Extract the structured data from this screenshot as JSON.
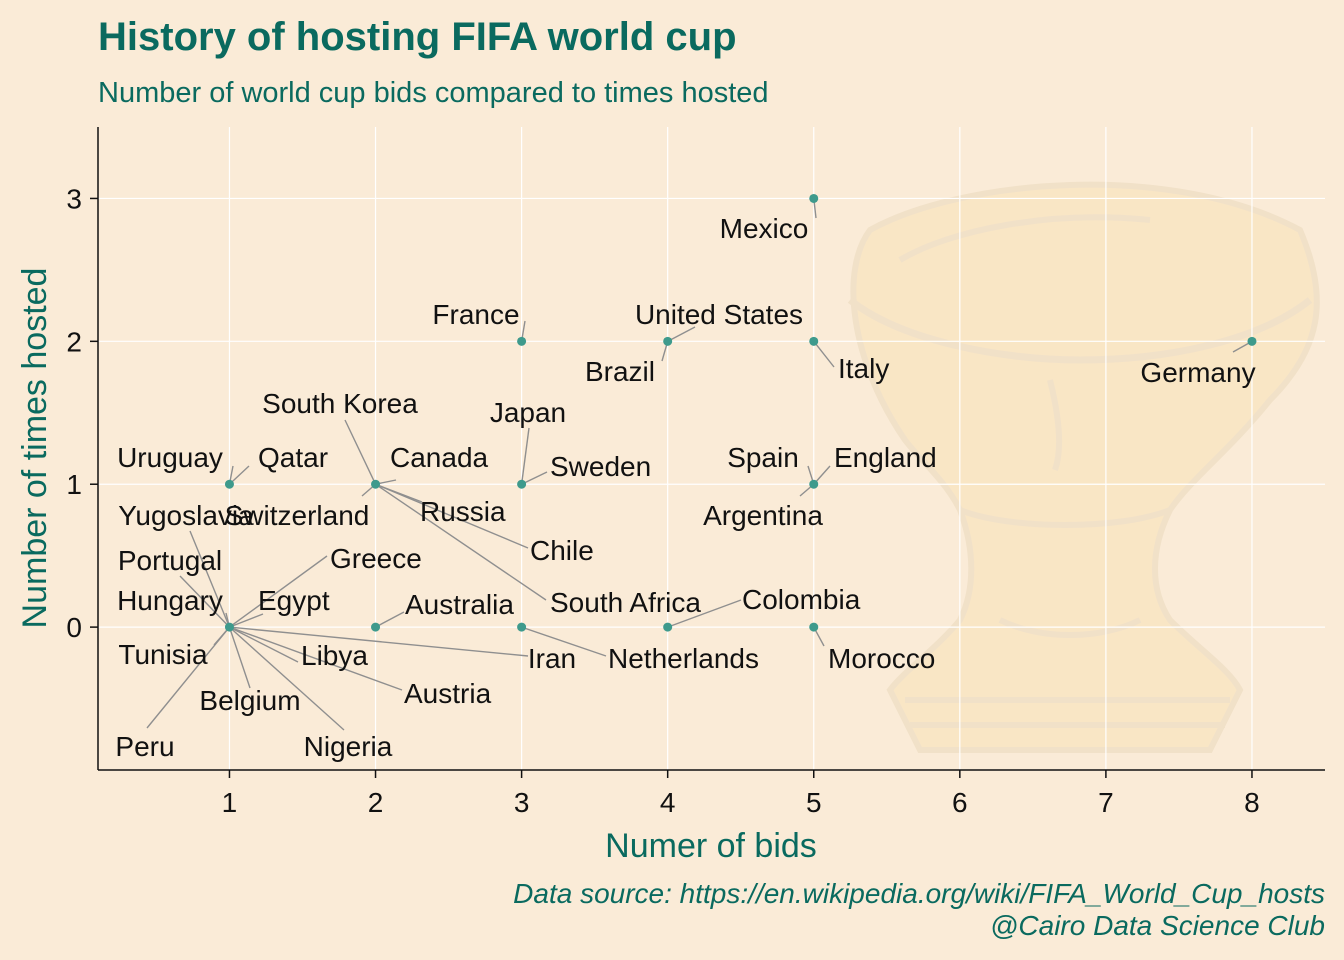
{
  "title": "History of hosting FIFA world cup",
  "subtitle": "Number of world cup bids compared to times hosted",
  "caption_line1": "Data source: https://en.wikipedia.org/wiki/FIFA_World_Cup_hosts",
  "caption_line2": "@Cairo Data Science Club",
  "colors": {
    "background": "#faebd7",
    "title": "#0a6a5f",
    "point": "#3e9a8c",
    "leader": "#8f8f8f",
    "grid": "#ffffff"
  },
  "chart_data": {
    "type": "scatter",
    "xlabel": "Numer of bids",
    "ylabel": "Number of times hosted",
    "xlim": [
      0.1,
      8.5
    ],
    "ylim": [
      -1,
      3.5
    ],
    "x_ticks": [
      1,
      2,
      3,
      4,
      5,
      6,
      7,
      8
    ],
    "y_ticks": [
      0,
      1,
      2,
      3
    ],
    "grid": true,
    "background_image": "world-cup-trophy-watermark",
    "points": [
      {
        "label": "Mexico",
        "x": 5,
        "y": 3
      },
      {
        "label": "France",
        "x": 3,
        "y": 2
      },
      {
        "label": "United States",
        "x": 4,
        "y": 2
      },
      {
        "label": "Brazil",
        "x": 4,
        "y": 2
      },
      {
        "label": "Italy",
        "x": 5,
        "y": 2
      },
      {
        "label": "Germany",
        "x": 8,
        "y": 2
      },
      {
        "label": "Uruguay",
        "x": 1,
        "y": 1
      },
      {
        "label": "Qatar",
        "x": 1,
        "y": 1
      },
      {
        "label": "South Korea",
        "x": 2,
        "y": 1
      },
      {
        "label": "Canada",
        "x": 2,
        "y": 1
      },
      {
        "label": "Switzerland",
        "x": 2,
        "y": 1
      },
      {
        "label": "Russia",
        "x": 2,
        "y": 1
      },
      {
        "label": "Chile",
        "x": 2,
        "y": 1
      },
      {
        "label": "South Africa",
        "x": 2,
        "y": 1
      },
      {
        "label": "Japan",
        "x": 3,
        "y": 1
      },
      {
        "label": "Sweden",
        "x": 3,
        "y": 1
      },
      {
        "label": "Spain",
        "x": 5,
        "y": 1
      },
      {
        "label": "England",
        "x": 5,
        "y": 1
      },
      {
        "label": "Argentina",
        "x": 5,
        "y": 1
      },
      {
        "label": "Yugoslavia",
        "x": 1,
        "y": 0
      },
      {
        "label": "Portugal",
        "x": 1,
        "y": 0
      },
      {
        "label": "Greece",
        "x": 1,
        "y": 0
      },
      {
        "label": "Hungary",
        "x": 1,
        "y": 0
      },
      {
        "label": "Egypt",
        "x": 1,
        "y": 0
      },
      {
        "label": "Tunisia",
        "x": 1,
        "y": 0
      },
      {
        "label": "Libya",
        "x": 1,
        "y": 0
      },
      {
        "label": "Belgium",
        "x": 1,
        "y": 0
      },
      {
        "label": "Austria",
        "x": 1,
        "y": 0
      },
      {
        "label": "Peru",
        "x": 1,
        "y": 0
      },
      {
        "label": "Nigeria",
        "x": 1,
        "y": 0
      },
      {
        "label": "Iran",
        "x": 1,
        "y": 0
      },
      {
        "label": "Australia",
        "x": 2,
        "y": 0
      },
      {
        "label": "Netherlands",
        "x": 3,
        "y": 0
      },
      {
        "label": "Colombia",
        "x": 4,
        "y": 0
      },
      {
        "label": "Morocco",
        "x": 5,
        "y": 0
      }
    ]
  }
}
